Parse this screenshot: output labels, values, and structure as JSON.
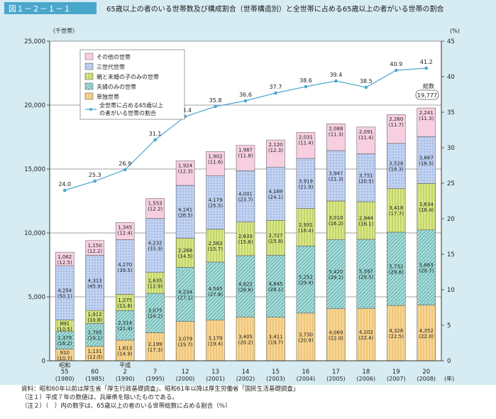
{
  "header": {
    "fig_no": "図１－２－１－１",
    "title": "65歳以上の者のいる世帯数及び構成割合（世帯構造別）と全世帯に占める65歳以上の者がいる世帯の割合"
  },
  "notes": [
    "資料：昭和60年以前は厚生省「厚生行政基礎調査」、昭和61年以降は厚生労働省「国民生活基礎調査」",
    "（注１）平成７年の数値は、兵庫県を除いたものである。",
    "（注２）（　）内の数字は、65歳以上の者のいる世帯総数に占める割合（％）"
  ],
  "colors": {
    "title_bar": "#4aa7cc",
    "frame": "#d6ebf2",
    "line": "#4aa7cc"
  },
  "chart_data": {
    "type": "bar",
    "stacked": true,
    "y_left_unit": "（千世帯）",
    "y_right_unit": "(%)",
    "ylim": [
      0,
      25000
    ],
    "y2lim": [
      0,
      45
    ],
    "yticks": [
      "0",
      "5,000",
      "10,000",
      "15,000",
      "20,000",
      "25,000"
    ],
    "y2ticks": [
      "0",
      "5",
      "10",
      "15",
      "20",
      "25",
      "30",
      "35",
      "40",
      "45"
    ],
    "categories": [
      {
        "era": "昭和",
        "year": "55",
        "ad": "(1980)"
      },
      {
        "era": "",
        "year": "60",
        "ad": "(1985)"
      },
      {
        "era": "平成",
        "year": "2",
        "ad": "(1990)"
      },
      {
        "era": "",
        "year": "7",
        "ad": "(1995)"
      },
      {
        "era": "",
        "year": "12",
        "ad": "(2000)"
      },
      {
        "era": "",
        "year": "13",
        "ad": "(2001)"
      },
      {
        "era": "",
        "year": "14",
        "ad": "(2002)"
      },
      {
        "era": "",
        "year": "15",
        "ad": "(2003)"
      },
      {
        "era": "",
        "year": "16",
        "ad": "(2004)"
      },
      {
        "era": "",
        "year": "17",
        "ad": "(2005)"
      },
      {
        "era": "",
        "year": "18",
        "ad": "(2006)"
      },
      {
        "era": "",
        "year": "19",
        "ad": "(2007)"
      },
      {
        "era": "",
        "year": "20",
        "ad": "(2008)"
      }
    ],
    "x_unit": "(年)",
    "series": [
      {
        "name": "単独世帯",
        "color": "#f8d898",
        "values": [
          910,
          1131,
          1613,
          2199,
          3079,
          3179,
          3405,
          3411,
          3730,
          4069,
          4102,
          4326,
          4352
        ],
        "labels": [
          "910",
          "1,131",
          "1,613",
          "2,199",
          "3,079",
          "3,179",
          "3,405",
          "3,411",
          "3,730",
          "4,069",
          "4,102",
          "4,326",
          "4,352"
        ],
        "pct": [
          "(10.7)",
          "(12.0)",
          "(14.9)",
          "(17.3)",
          "(19.7)",
          "(19.4)",
          "(20.2)",
          "(19.7)",
          "(20.9)",
          "(22.0)",
          "(22.4)",
          "(22.5)",
          "(22.0)"
        ]
      },
      {
        "name": "夫婦のみの世帯",
        "color": "#9ed8d6",
        "values": [
          1379,
          1795,
          2314,
          3075,
          4234,
          4545,
          4822,
          4845,
          5252,
          5420,
          5397,
          5732,
          5883
        ],
        "labels": [
          "1,379",
          "1,795",
          "2,314",
          "3,075",
          "4,234",
          "4,545",
          "4,822",
          "4,845",
          "5,252",
          "5,420",
          "5,397",
          "5,732",
          "5,883"
        ],
        "pct": [
          "(16.2)",
          "(19.1)",
          "(21.4)",
          "(24.2)",
          "(27.1)",
          "(27.8)",
          "(28.6)",
          "(28.1)",
          "(29.4)",
          "(29.2)",
          "(29.5)",
          "(29.8)",
          "(29.7)"
        ]
      },
      {
        "name": "親と未婚の子のみの世帯",
        "color": "#d8e87a",
        "values": [
          891,
          1012,
          1275,
          1635,
          2268,
          2563,
          2633,
          2727,
          2931,
          3010,
          2944,
          3418,
          3634
        ],
        "labels": [
          "891",
          "1,012",
          "1,275",
          "1,635",
          "2,268",
          "2,563",
          "2,633",
          "2,727",
          "2,931",
          "3,010",
          "2,944",
          "3,418",
          "3,634"
        ],
        "pct": [
          "(10.5)",
          "(10.8)",
          "(11.8)",
          "(12.9)",
          "(14.5)",
          "(15.7)",
          "(15.6)",
          "(15.8)",
          "(16.4)",
          "(16.2)",
          "(16.1)",
          "(17.7)",
          "(18.4)"
        ]
      },
      {
        "name": "三世代世帯",
        "color": "#b9cdf0",
        "values": [
          4254,
          4313,
          4270,
          4232,
          4141,
          4179,
          4001,
          4169,
          3919,
          3947,
          3751,
          3528,
          3667
        ],
        "labels": [
          "4,254",
          "4,313",
          "4,270",
          "4,232",
          "4,141",
          "4,179",
          "4,001",
          "4,169",
          "3,919",
          "3,947",
          "3,751",
          "3,528",
          "3,667"
        ],
        "pct": [
          "(50.1)",
          "(45.9)",
          "(39.5)",
          "(33.3)",
          "(26.5)",
          "(25.5)",
          "(23.7)",
          "(24.1)",
          "(21.9)",
          "(21.3)",
          "(20.5)",
          "(18.3)",
          "(18.5)"
        ]
      },
      {
        "name": "その他の世帯",
        "color": "#f5c8dc",
        "values": [
          1062,
          1150,
          1345,
          1553,
          1924,
          1902,
          1987,
          2120,
          2031,
          2088,
          2091,
          2260,
          2241
        ],
        "labels": [
          "1,062",
          "1,150",
          "1,345",
          "1,553",
          "1,924",
          "1,902",
          "1,987",
          "2,120",
          "2,031",
          "2,088",
          "2,091",
          "2,260",
          "2,241"
        ],
        "pct": [
          "(12.5)",
          "(12.2)",
          "(12.4)",
          "(12.2)",
          "(12.3)",
          "(11.6)",
          "(11.8)",
          "(12.3)",
          "(11.4)",
          "(11.3)",
          "(11.4)",
          "(11.7)",
          "(11.3)"
        ]
      }
    ],
    "line": {
      "name": "全世帯に占める65歳以上の者がいる世帯の割合",
      "legend_lines": [
        "全世帯に占める65歳以上",
        "の者がいる世帯の割合"
      ],
      "values": [
        24.0,
        25.3,
        26.9,
        31.1,
        34.4,
        35.8,
        36.6,
        37.7,
        38.6,
        39.4,
        38.5,
        40.9,
        41.2
      ],
      "labels": [
        "24.0",
        "25.3",
        "26.9",
        "31.1",
        "34.4",
        "35.8",
        "36.6",
        "37.7",
        "38.6",
        "39.4",
        "38.5",
        "40.9",
        "41.2"
      ]
    },
    "legend_order": [
      4,
      3,
      2,
      1,
      0
    ],
    "legend_position": "top-left",
    "total_callout": {
      "label": "総数",
      "value": "19,777"
    }
  }
}
